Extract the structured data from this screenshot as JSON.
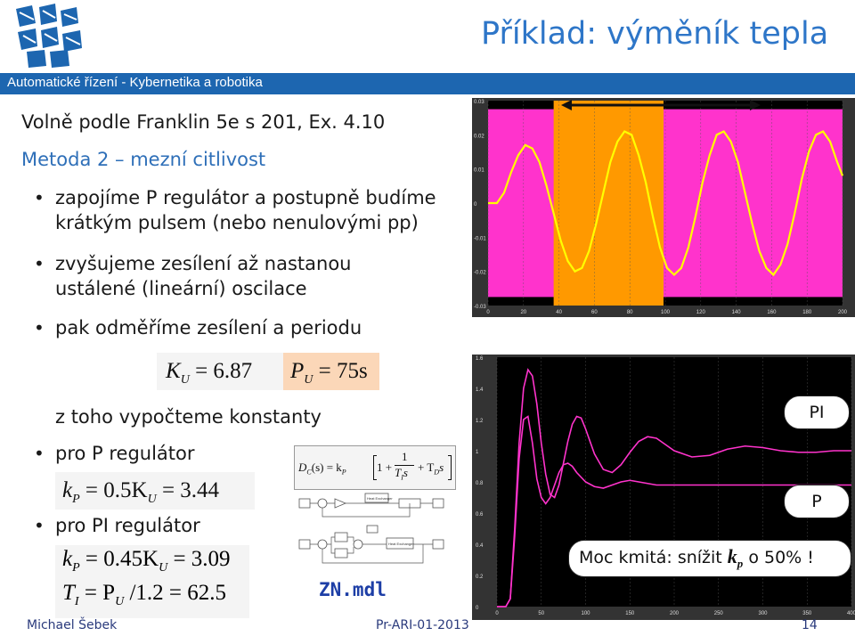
{
  "header": {
    "band_text": "Automatické řízení - Kybernetika a robotika",
    "title": "Příklad: výměník tepla"
  },
  "left": {
    "line1": "Volně podle Franklin 5e s 201, Ex. 4.10",
    "line2": "Metoda 2 – mezní citlivost",
    "bullets": [
      {
        "l1": "zapojíme P regulátor a postupně budíme",
        "l2": "krátkým pulsem (nebo nenulovými pp)"
      },
      {
        "l1": "zvyšujeme zesílení až nastanou",
        "l2": "ustálené (lineární) oscilace"
      },
      {
        "l1": "pak odměříme zesílení a periodu",
        "l2": ""
      }
    ],
    "ku_sym": "K",
    "ku_sub": "U",
    "ku_val": "= 6.87",
    "pu_sym": "P",
    "pu_sub": "U",
    "pu_val": "= 75s",
    "line_konst": "z toho vypočteme konstanty",
    "p_reg": "pro P regulátor",
    "eq_p": {
      "lhs": "k",
      "lhs_sub": "P",
      "mid": "= 0.5K",
      "mid_sub": "U",
      "rhs": "= 3.44"
    },
    "pi_reg": "pro PI regulátor",
    "eq_pi1": {
      "lhs": "k",
      "lhs_sub": "P",
      "mid": "= 0.45K",
      "mid_sub": "U",
      "rhs": "= 3.09"
    },
    "eq_pi2": {
      "lhs": "T",
      "lhs_sub": "I",
      "mid": "= P",
      "mid_sub": "U",
      "rhs": "/1.2 = 62.5"
    }
  },
  "middle": {
    "dc": "D",
    "dc_sub": "C",
    "dc_rest": "(s) = k",
    "dc_rest_sub": "P",
    "frac_num": "1",
    "frac_den": "T",
    "frac_den_sub": "I",
    "frac_den_s": "s",
    "td": "+ T",
    "td_sub": "D",
    "td_s": "s",
    "one_plus": "1 +",
    "file": "ZN.mdl"
  },
  "top_chart": {
    "y_ticks": [
      "0.03",
      "0.02",
      "0.01",
      "0",
      "-0.01",
      "-0.02",
      "-0.03"
    ],
    "x_ticks": [
      "0",
      "20",
      "40",
      "60",
      "80",
      "100",
      "120",
      "140",
      "160",
      "180",
      "200"
    ],
    "chart_data": {
      "type": "line",
      "xlim": [
        0,
        200
      ],
      "ylim": [
        -0.03,
        0.03
      ],
      "x": [
        0,
        5,
        9,
        13,
        17,
        21,
        25,
        29,
        33,
        37,
        41,
        45,
        49,
        53,
        57,
        61,
        65,
        69,
        73,
        77,
        81,
        85,
        89,
        93,
        97,
        101,
        105,
        109,
        113,
        117,
        121,
        125,
        129,
        133,
        137,
        141,
        145,
        149,
        153,
        157,
        161,
        165,
        169,
        173,
        177,
        181,
        185,
        189,
        193,
        197,
        200
      ],
      "y": [
        0,
        0,
        0.003,
        0.009,
        0.014,
        0.017,
        0.016,
        0.012,
        0.005,
        -0.003,
        -0.011,
        -0.017,
        -0.02,
        -0.019,
        -0.014,
        -0.006,
        0.003,
        0.012,
        0.018,
        0.021,
        0.02,
        0.014,
        0.006,
        -0.004,
        -0.013,
        -0.019,
        -0.021,
        -0.019,
        -0.013,
        -0.004,
        0.006,
        0.014,
        0.02,
        0.021,
        0.018,
        0.012,
        0.003,
        -0.006,
        -0.014,
        -0.019,
        -0.021,
        -0.018,
        -0.012,
        -0.003,
        0.007,
        0.015,
        0.02,
        0.021,
        0.018,
        0.012,
        0.008
      ]
    }
  },
  "bottom_chart": {
    "y_ticks": [
      "1.6",
      "1.4",
      "1.2",
      "1",
      "0.8",
      "0.6",
      "0.4",
      "0.2",
      "0"
    ],
    "x_ticks": [
      "0",
      "50",
      "100",
      "150",
      "200",
      "250",
      "300",
      "350",
      "400"
    ],
    "chart_data": {
      "type": "line",
      "xlim": [
        0,
        400
      ],
      "ylim": [
        0,
        1.6
      ],
      "series": [
        {
          "name": "PI",
          "x": [
            0,
            10,
            15,
            20,
            25,
            30,
            35,
            40,
            45,
            50,
            55,
            60,
            65,
            70,
            75,
            80,
            85,
            90,
            95,
            100,
            110,
            120,
            130,
            140,
            150,
            160,
            170,
            180,
            190,
            200,
            220,
            240,
            260,
            280,
            300,
            320,
            340,
            360,
            380,
            400
          ],
          "y": [
            0,
            0,
            0.05,
            0.5,
            1.05,
            1.4,
            1.52,
            1.48,
            1.3,
            1.05,
            0.85,
            0.72,
            0.7,
            0.78,
            0.92,
            1.06,
            1.17,
            1.22,
            1.21,
            1.14,
            0.98,
            0.88,
            0.86,
            0.91,
            0.99,
            1.06,
            1.09,
            1.08,
            1.04,
            1.0,
            0.96,
            0.97,
            1.01,
            1.03,
            1.02,
            1.0,
            0.99,
            0.99,
            1.0,
            1.0
          ]
        },
        {
          "name": "P",
          "x": [
            0,
            10,
            15,
            20,
            25,
            30,
            35,
            40,
            45,
            50,
            55,
            60,
            65,
            70,
            75,
            80,
            85,
            90,
            100,
            110,
            120,
            130,
            140,
            150,
            160,
            170,
            180,
            200,
            220,
            240,
            260,
            280,
            300,
            320,
            340,
            360,
            380,
            400
          ],
          "y": [
            0,
            0,
            0.05,
            0.45,
            0.95,
            1.2,
            1.22,
            1.05,
            0.82,
            0.7,
            0.66,
            0.7,
            0.78,
            0.86,
            0.91,
            0.92,
            0.9,
            0.86,
            0.8,
            0.77,
            0.76,
            0.78,
            0.8,
            0.81,
            0.8,
            0.79,
            0.78,
            0.78,
            0.78,
            0.78,
            0.78,
            0.78,
            0.78,
            0.78,
            0.78,
            0.78,
            0.78,
            0.78
          ]
        }
      ]
    },
    "label_pi": "PI",
    "label_p": "P",
    "note": "Moc kmitá: snížit",
    "note_k": "k",
    "note_k_sub": "p",
    "note_tail": "o 50% !"
  },
  "footer": {
    "author": "Michael Šebek",
    "code": "Pr-ARI-01-2013",
    "page": "14"
  },
  "colors": {
    "band": "#1d66b0",
    "title": "#2e76c8",
    "magenta": "#ff33cc",
    "orange": "#ff9900",
    "yellow": "#ffff00"
  }
}
